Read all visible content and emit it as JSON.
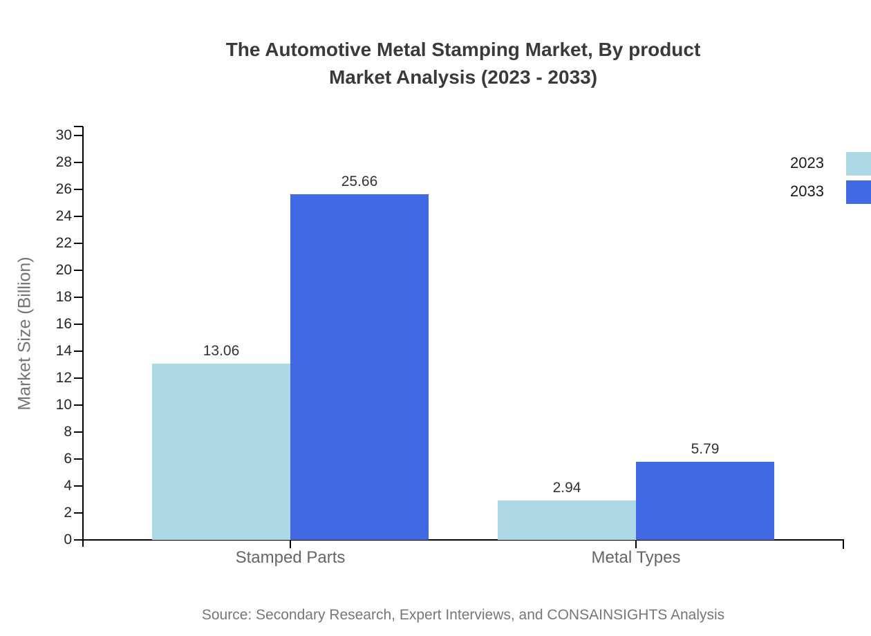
{
  "title": {
    "line1": "The Automotive Metal Stamping Market, By product",
    "line2": "Market Analysis (2023 - 2033)"
  },
  "y_axis_label": "Market Size (Billion)",
  "source": "Source: Secondary Research, Expert Interviews, and CONSAINSIGHTS Analysis",
  "colors": {
    "series_2023": "#ADD8E6",
    "series_2033": "#4169E1",
    "axis": "#000000",
    "title_text": "#3a3a3a",
    "tick_text": "#262626",
    "category_text": "#666666",
    "source_text": "#777777"
  },
  "chart_data": {
    "type": "bar",
    "title": "The Automotive Metal Stamping Market, By product Market Analysis (2023 - 2033)",
    "categories": [
      "Stamped Parts",
      "Metal Types"
    ],
    "series": [
      {
        "name": "2023",
        "color": "#ADD8E6",
        "values": [
          13.06,
          2.94
        ]
      },
      {
        "name": "2033",
        "color": "#4169E1",
        "values": [
          25.66,
          5.79
        ]
      }
    ],
    "xlabel": "",
    "ylabel": "Market Size (Billion)",
    "ylim": [
      0,
      30
    ],
    "ytick_step": 2,
    "grid": false,
    "legend_position": "upper-right",
    "value_labels": [
      "13.06",
      "25.66",
      "2.94",
      "5.79"
    ]
  }
}
